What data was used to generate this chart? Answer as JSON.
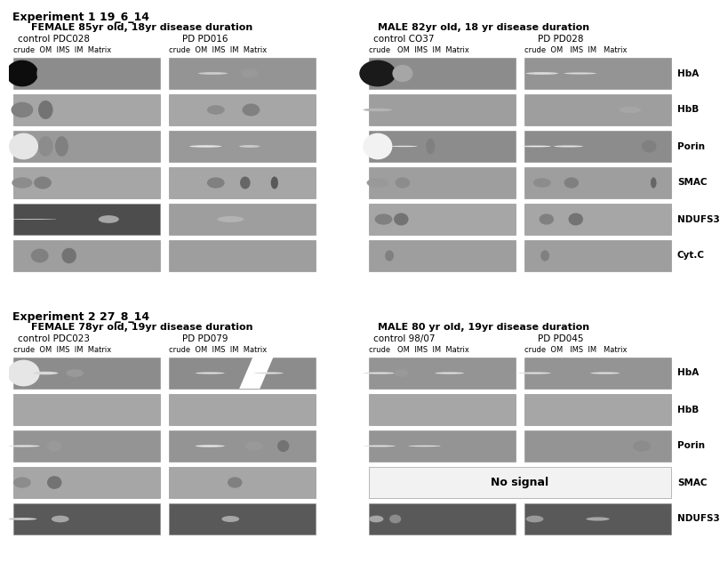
{
  "title_exp1": "Experiment 1 19_6_14",
  "title_exp2": "Experiment 2 27_8_14",
  "exp1_female_header1": "FEMALE 85yr old, 18yr disease duration",
  "exp1_female_header2": "control PDC028                PD PD016",
  "exp1_male_header1": "MALE 82yr old, 18 yr disease duration",
  "exp1_male_header2": "control CO37              PD PD028",
  "exp2_female_header1": "FEMALE 78yr old, 19yr disease duration",
  "exp2_female_header2": "control PDC023              PD PD079",
  "exp2_male_header1": "MALE 80 yr old, 19yr disease duration",
  "exp2_male_header2": "control 98/07              PD PD045",
  "row_labels_exp1": [
    "HbA",
    "HbB",
    "Porin",
    "SMAC",
    "NDUFS3",
    "Cyt.C"
  ],
  "row_labels_exp2": [
    "HbA",
    "HbB",
    "Porin",
    "SMAC",
    "NDUFS3"
  ],
  "no_signal_text": "No signal",
  "fig_bg": "#ffffff",
  "exp1_col_labels_female1": "crude  OM  IMS  IM  Matrix",
  "exp1_col_labels_female2": "crude  OM  IMS  IM  Matrix",
  "exp1_col_labels_male1": "crude   OM  IMS  IM  Matrix",
  "exp1_col_labels_male2": "crude OM   IMS  IM    Matrix",
  "exp2_col_labels_female1": "crude  OM  IMS  IM  Matrix",
  "exp2_col_labels_female2": "crude  OM  IMS  IM  Matrix",
  "exp2_col_labels_male1": "crude   OM  IMS  IM  Matrix",
  "exp2_col_labels_male2": "crude OM   IMS  IM    Matrix"
}
